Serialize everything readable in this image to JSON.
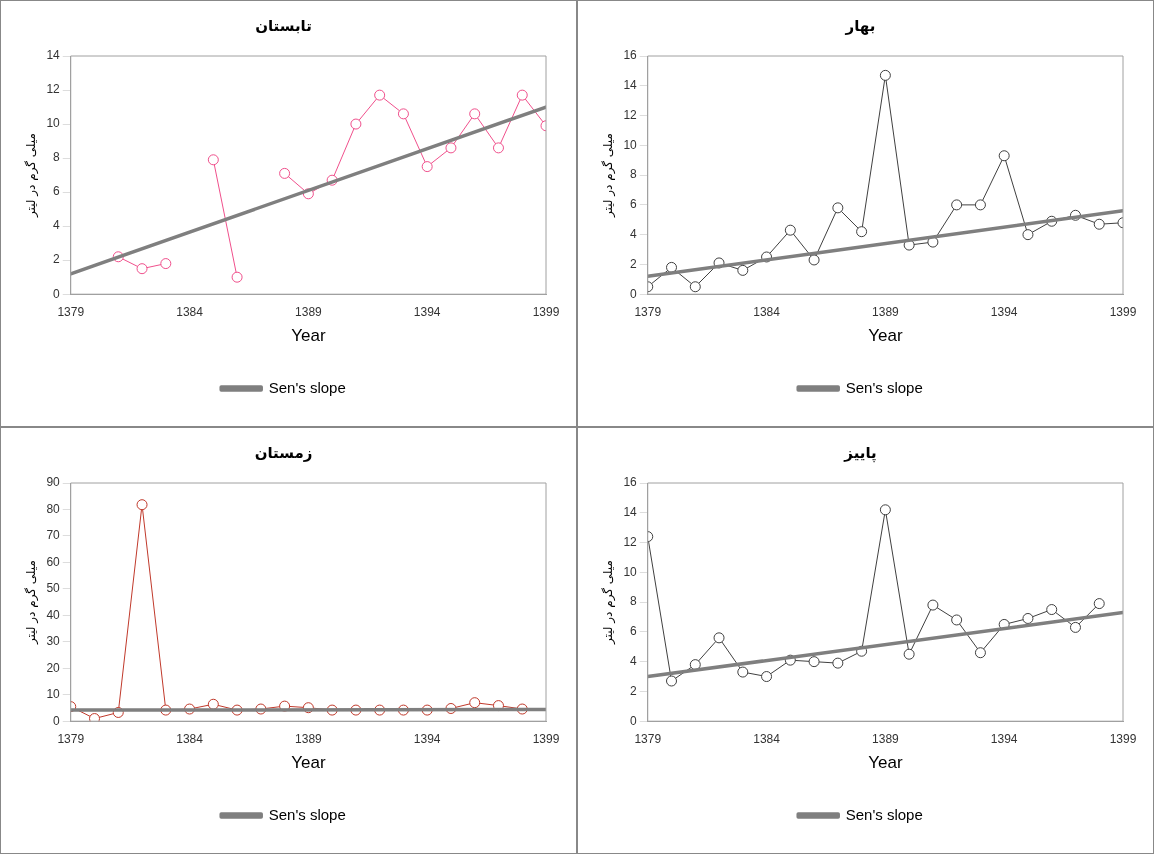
{
  "chart_data": [
    {
      "type": "line",
      "title": "تابستان",
      "xlabel": "Year",
      "ylabel": "میلی گرم در لیتر",
      "xlim": [
        1379,
        1399
      ],
      "xticks": [
        1379,
        1384,
        1389,
        1394,
        1399
      ],
      "ylim": [
        0,
        14
      ],
      "yticks": [
        0,
        2,
        4,
        6,
        8,
        10,
        12,
        14
      ],
      "grid": false,
      "legend": "bottom",
      "marker": "circle",
      "series": [
        {
          "color": "#f0508c",
          "x": [
            1381,
            1382,
            1383,
            1384,
            1385,
            1386,
            1387,
            1388,
            1389,
            1390,
            1391,
            1392,
            1393,
            1394,
            1395,
            1396,
            1397,
            1398,
            1399
          ],
          "values": [
            2.2,
            1.5,
            1.8,
            null,
            7.9,
            1.0,
            null,
            7.1,
            5.9,
            6.7,
            10.0,
            11.7,
            10.6,
            7.5,
            8.6,
            10.6,
            8.6,
            11.7,
            9.9
          ]
        },
        {
          "name": "Sen's slope",
          "type": "line",
          "marker": "none",
          "color": "#7f7f7f",
          "x": [
            1379,
            1399
          ],
          "values": [
            1.2,
            11.0
          ]
        }
      ]
    },
    {
      "type": "line",
      "title": "بهار",
      "xlabel": "Year",
      "ylabel": "میلی گرم در لیتر",
      "xlim": [
        1379,
        1399
      ],
      "xticks": [
        1379,
        1384,
        1389,
        1394,
        1399
      ],
      "ylim": [
        0,
        16
      ],
      "yticks": [
        0,
        2,
        4,
        6,
        8,
        10,
        12,
        14,
        16
      ],
      "grid": false,
      "legend": "bottom",
      "marker": "circle",
      "series": [
        {
          "color": "#404040",
          "x": [
            1379,
            1380,
            1381,
            1382,
            1383,
            1384,
            1385,
            1386,
            1387,
            1388,
            1389,
            1390,
            1391,
            1392,
            1393,
            1394,
            1395,
            1396,
            1397,
            1398,
            1399
          ],
          "values": [
            0.5,
            1.8,
            0.5,
            2.1,
            1.6,
            2.5,
            4.3,
            2.3,
            5.8,
            4.2,
            14.7,
            3.3,
            3.5,
            6.0,
            6.0,
            9.3,
            4.0,
            4.9,
            5.3,
            4.7,
            4.8
          ]
        },
        {
          "name": "Sen's slope",
          "type": "line",
          "marker": "none",
          "color": "#7f7f7f",
          "x": [
            1379,
            1399
          ],
          "values": [
            1.2,
            5.6
          ]
        }
      ]
    },
    {
      "type": "line",
      "title": "زمستان",
      "xlabel": "Year",
      "ylabel": "میلی گرم در لیتر",
      "xlim": [
        1379,
        1399
      ],
      "xticks": [
        1379,
        1384,
        1389,
        1394,
        1399
      ],
      "ylim": [
        0,
        90
      ],
      "yticks": [
        0,
        10,
        20,
        30,
        40,
        50,
        60,
        70,
        80,
        90
      ],
      "grid": false,
      "legend": "bottom",
      "marker": "circle",
      "series": [
        {
          "color": "#c0392b",
          "x": [
            1379,
            1380,
            1381,
            1382,
            1383,
            1384,
            1385,
            1386,
            1387,
            1388,
            1389,
            1390,
            1391,
            1392,
            1393,
            1394,
            1395,
            1396,
            1397,
            1398
          ],
          "values": [
            5.5,
            1,
            3.3,
            81.8,
            4.2,
            4.6,
            6.4,
            4.2,
            4.6,
            5.7,
            5.1,
            4.2,
            4.2,
            4.2,
            4.2,
            4.2,
            4.8,
            7.0,
            5.9,
            4.6
          ]
        },
        {
          "name": "Sen's slope",
          "type": "line",
          "marker": "none",
          "color": "#7f7f7f",
          "x": [
            1379,
            1399
          ],
          "values": [
            4.2,
            4.4
          ]
        }
      ]
    },
    {
      "type": "line",
      "title": "پاییز",
      "xlabel": "Year",
      "ylabel": "میلی گرم در لیتر",
      "xlim": [
        1379,
        1399
      ],
      "xticks": [
        1379,
        1384,
        1389,
        1394,
        1399
      ],
      "ylim": [
        0,
        16
      ],
      "yticks": [
        0,
        2,
        4,
        6,
        8,
        10,
        12,
        14,
        16
      ],
      "grid": false,
      "legend": "bottom",
      "marker": "circle",
      "series": [
        {
          "color": "#404040",
          "x": [
            1379,
            1380,
            1381,
            1382,
            1383,
            1384,
            1385,
            1386,
            1387,
            1388,
            1389,
            1390,
            1391,
            1392,
            1393,
            1394,
            1395,
            1396,
            1397,
            1398
          ],
          "values": [
            12.4,
            2.7,
            3.8,
            5.6,
            3.3,
            3.0,
            4.1,
            4.0,
            3.9,
            4.7,
            14.2,
            4.5,
            7.8,
            6.8,
            4.6,
            6.5,
            6.9,
            7.5,
            6.3,
            7.9
          ]
        },
        {
          "name": "Sen's slope",
          "type": "line",
          "marker": "none",
          "color": "#7f7f7f",
          "x": [
            1379,
            1399
          ],
          "values": [
            3.0,
            7.3
          ]
        }
      ]
    }
  ]
}
